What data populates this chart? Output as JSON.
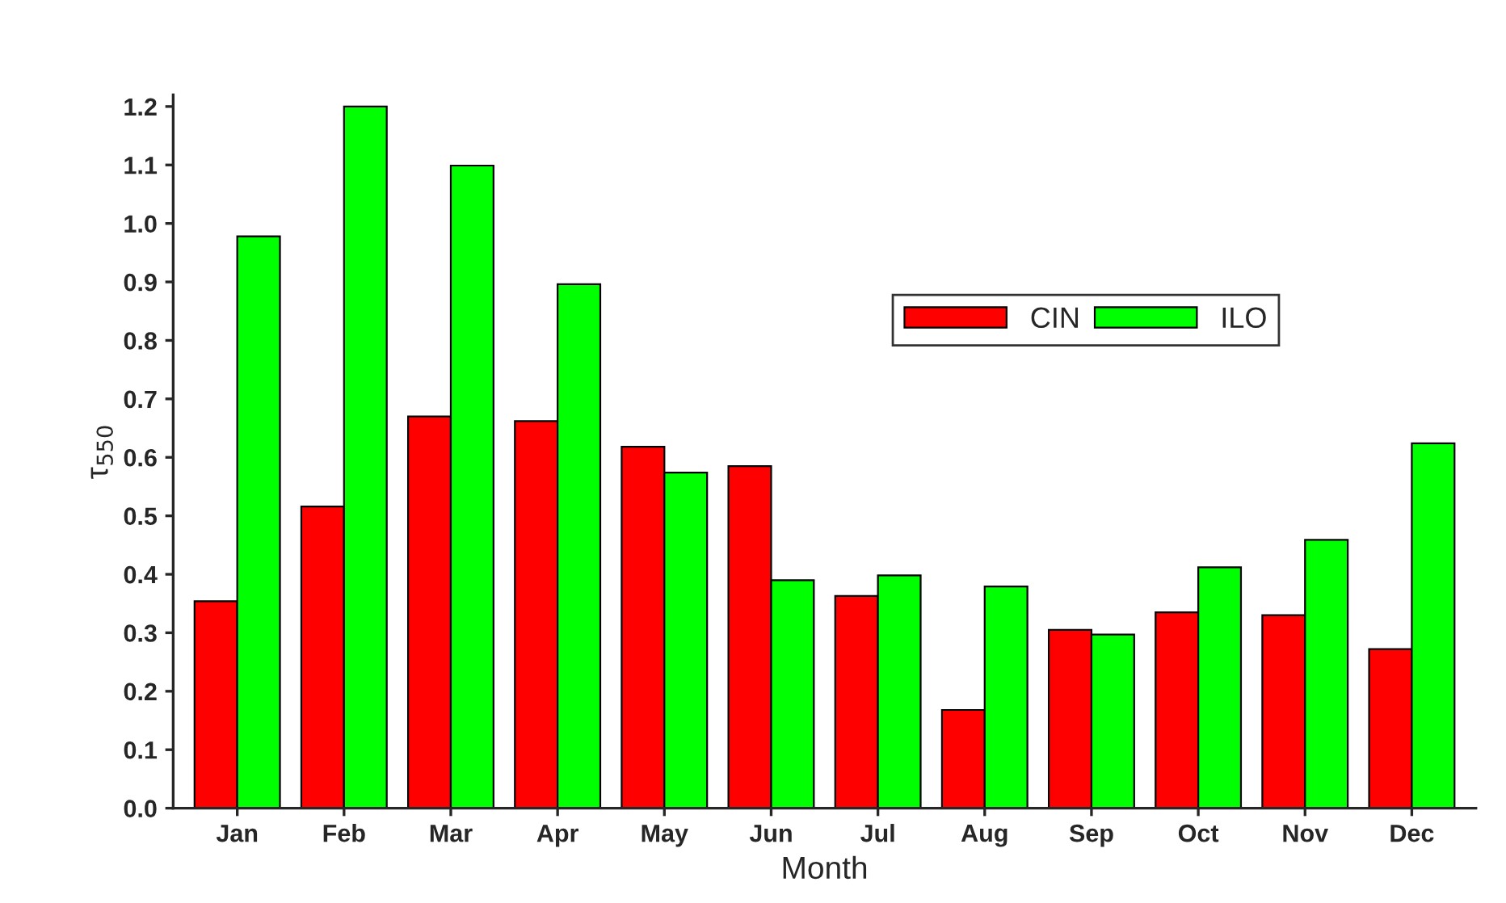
{
  "chart_data": {
    "type": "bar",
    "xlabel": "Month",
    "ylabel": "τ$_{550}$",
    "categories": [
      "Jan",
      "Feb",
      "Mar",
      "Apr",
      "May",
      "Jun",
      "Jul",
      "Aug",
      "Sep",
      "Oct",
      "Nov",
      "Dec"
    ],
    "series": [
      {
        "name": "CIN",
        "color": "#ff0000",
        "values": [
          0.354,
          0.516,
          0.67,
          0.662,
          0.618,
          0.585,
          0.363,
          0.168,
          0.305,
          0.335,
          0.33,
          0.272
        ]
      },
      {
        "name": "ILO",
        "color": "#00ff00",
        "values": [
          0.978,
          1.2,
          1.099,
          0.896,
          0.574,
          0.39,
          0.398,
          0.379,
          0.297,
          0.412,
          0.459,
          0.624
        ]
      }
    ],
    "ylim": [
      0,
      1.22
    ],
    "yticks": [
      {
        "value": 0,
        "label": "0.0"
      },
      {
        "value": 0.1,
        "label": "0.1"
      },
      {
        "value": 0.2,
        "label": "0.2"
      },
      {
        "value": 0.3,
        "label": "0.3"
      },
      {
        "value": 0.4,
        "label": "0.4"
      },
      {
        "value": 0.5,
        "label": "0.5"
      },
      {
        "value": 0.6,
        "label": "0.6"
      },
      {
        "value": 0.7,
        "label": "0.7"
      },
      {
        "value": 0.8,
        "label": "0.8"
      },
      {
        "value": 0.9,
        "label": "0.9"
      },
      {
        "value": 1.0,
        "label": "1.0"
      },
      {
        "value": 1.1,
        "label": "1.1"
      },
      {
        "value": 1.2,
        "label": "1.2"
      }
    ],
    "grid": false,
    "legend": "top right"
  }
}
